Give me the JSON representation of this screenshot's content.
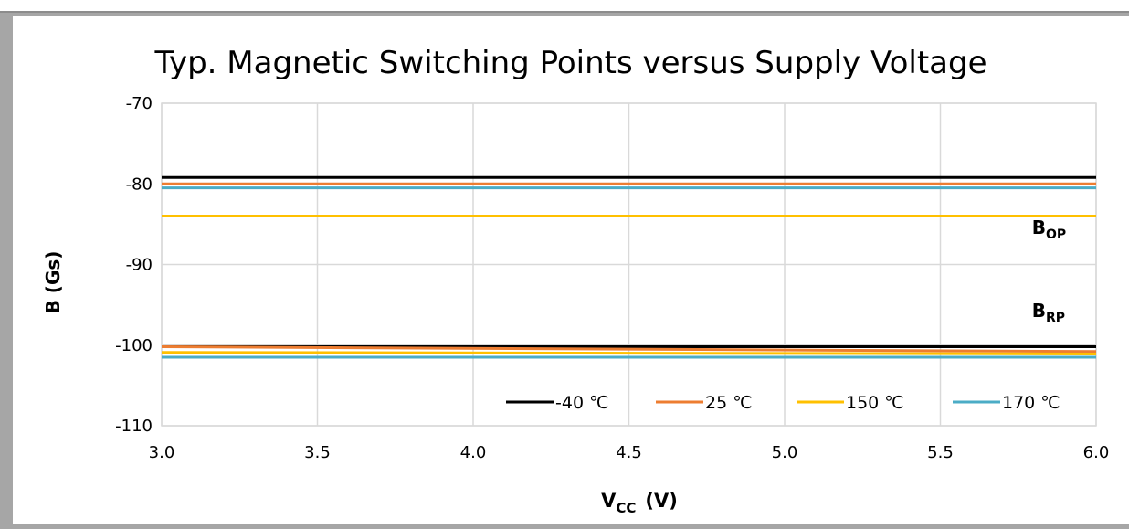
{
  "chart_data": {
    "type": "line",
    "title": "Typ. Magnetic Switching Points versus Supply Voltage",
    "xlabel": {
      "main": "V",
      "sub": "CC",
      "unit": "(V)"
    },
    "ylabel": "B  (Gs)",
    "xlim": [
      3.0,
      6.0
    ],
    "ylim": [
      -110,
      -70
    ],
    "x_ticks": [
      "3.0",
      "3.5",
      "4.0",
      "4.5",
      "5.0",
      "5.5",
      "6.0"
    ],
    "y_ticks": [
      "-70",
      "-80",
      "-90",
      "-100",
      "-110"
    ],
    "grid": true,
    "legend_position": "bottom-right",
    "annotations": [
      {
        "main": "B",
        "sub": "OP",
        "x": 5.75,
        "y": -86.2
      },
      {
        "main": "B",
        "sub": "RP",
        "x": 5.75,
        "y": -96.5
      }
    ],
    "series": [
      {
        "name": "-40 ℃",
        "color": "#000000",
        "x": [
          3.0,
          6.0
        ],
        "y_op": [
          -79.2,
          -79.2
        ],
        "y_rp": [
          -100.2,
          -100.2
        ]
      },
      {
        "name": "25 ℃",
        "color": "#ed7d31",
        "x": [
          3.0,
          6.0
        ],
        "y_op": [
          -80.0,
          -80.0
        ],
        "y_rp": [
          -100.2,
          -100.8
        ]
      },
      {
        "name": "150 ℃",
        "color": "#ffc000",
        "x": [
          3.0,
          6.0
        ],
        "y_op": [
          -84.0,
          -84.0
        ],
        "y_rp": [
          -100.9,
          -101.1
        ]
      },
      {
        "name": "170 ℃",
        "color": "#4bacc6",
        "x": [
          3.0,
          6.0
        ],
        "y_op": [
          -80.5,
          -80.5
        ],
        "y_rp": [
          -101.5,
          -101.5
        ]
      }
    ]
  }
}
